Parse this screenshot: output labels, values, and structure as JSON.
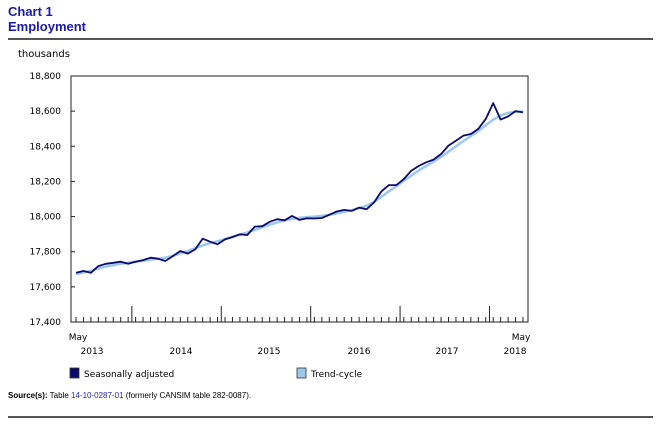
{
  "header": {
    "chart_number": "Chart 1",
    "chart_title": "Employment"
  },
  "source": {
    "label": "Source(s):",
    "prefix": "Table ",
    "link_text": "14-10-0287-01",
    "suffix": " (formerly CANSIM table 282-0087)."
  },
  "chart_data": {
    "type": "line",
    "title": "Employment",
    "ylabel": "thousands",
    "ylim": [
      17400,
      18800
    ],
    "yticks": [
      17400,
      17600,
      17800,
      18000,
      18200,
      18400,
      18600,
      18800
    ],
    "ytick_labels": [
      "17,400",
      "17,600",
      "17,800",
      "18,000",
      "18,200",
      "18,400",
      "18,600",
      "18,800"
    ],
    "x_start": "2013-05",
    "x_end": "2018-05",
    "x_unit": "month",
    "x_tick_labels": [
      {
        "month": "May",
        "year": "2013"
      },
      {
        "year": "2014"
      },
      {
        "year": "2015"
      },
      {
        "year": "2016"
      },
      {
        "year": "2017"
      },
      {
        "month": "May",
        "year": "2018"
      }
    ],
    "grid": false,
    "legend_placement": "bottom",
    "series": [
      {
        "name": "Seasonally adjusted",
        "color": "#0b0b6b",
        "values": [
          17680,
          17690,
          17680,
          17718,
          17731,
          17737,
          17743,
          17731,
          17743,
          17752,
          17766,
          17760,
          17747,
          17775,
          17804,
          17789,
          17813,
          17874,
          17857,
          17842,
          17870,
          17884,
          17899,
          17895,
          17943,
          17945,
          17970,
          17985,
          17979,
          18004,
          17981,
          17990,
          17989,
          17992,
          18010,
          18029,
          18038,
          18032,
          18051,
          18042,
          18080,
          18143,
          18179,
          18179,
          18213,
          18261,
          18288,
          18309,
          18324,
          18356,
          18404,
          18432,
          18461,
          18470,
          18499,
          18556,
          18646,
          18552,
          18570,
          18600,
          18593
        ]
      },
      {
        "name": "Trend-cycle",
        "color": "#9cc8f0",
        "values": [
          17672,
          17682,
          17692,
          17704,
          17715,
          17724,
          17731,
          17737,
          17743,
          17749,
          17755,
          17760,
          17766,
          17776,
          17790,
          17804,
          17820,
          17836,
          17849,
          17860,
          17872,
          17884,
          17897,
          17910,
          17924,
          17939,
          17954,
          17967,
          17978,
          17987,
          17993,
          17997,
          18000,
          18004,
          18010,
          18018,
          18027,
          18036,
          18047,
          18062,
          18083,
          18112,
          18144,
          18173,
          18203,
          18233,
          18262,
          18288,
          18313,
          18340,
          18370,
          18400,
          18430,
          18458,
          18487,
          18520,
          18552,
          18575,
          18590,
          18597,
          18598
        ]
      }
    ]
  }
}
